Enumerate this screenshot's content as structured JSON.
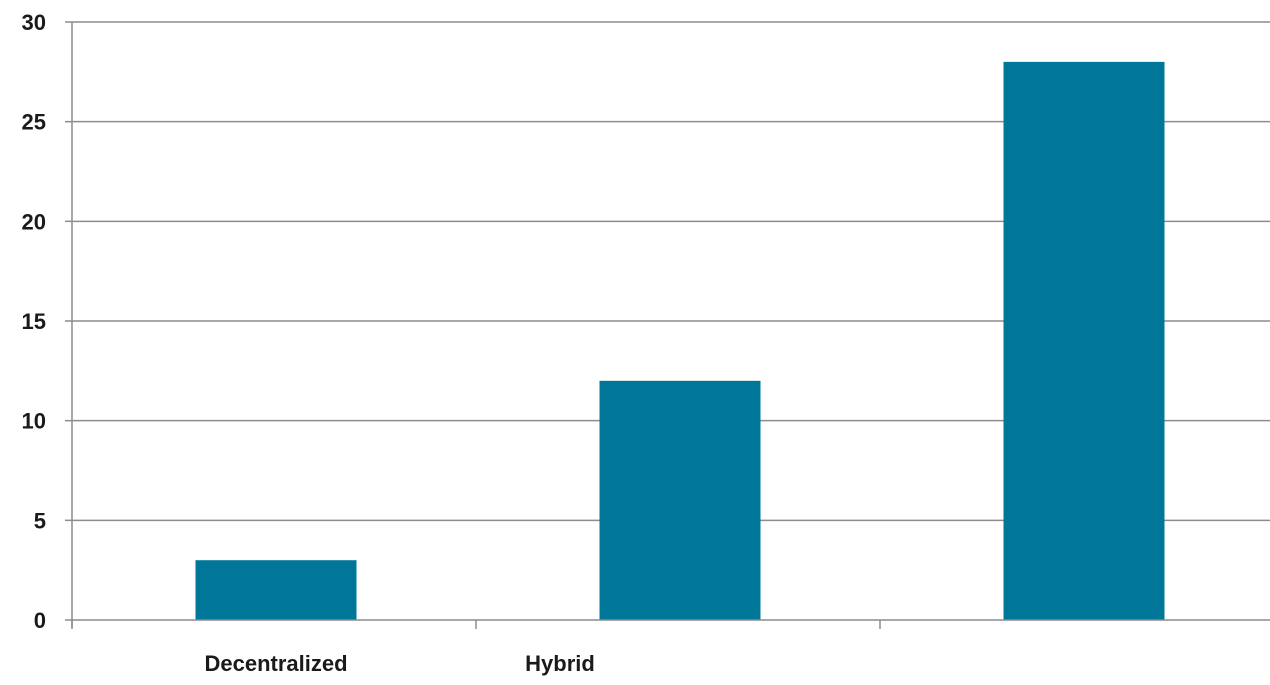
{
  "chart_data": {
    "type": "bar",
    "categories": [
      "Decentralized",
      "Hybrid",
      ""
    ],
    "values": [
      3,
      12,
      28
    ],
    "ylim": [
      0,
      30
    ],
    "yticks": [
      0,
      5,
      10,
      15,
      20,
      25,
      30
    ],
    "grid": true,
    "legend": "none",
    "colors": {
      "bar": "#007799",
      "grid": "#8c8c8c",
      "axis": "#8c8c8c",
      "text": "#1a1a1a"
    }
  }
}
